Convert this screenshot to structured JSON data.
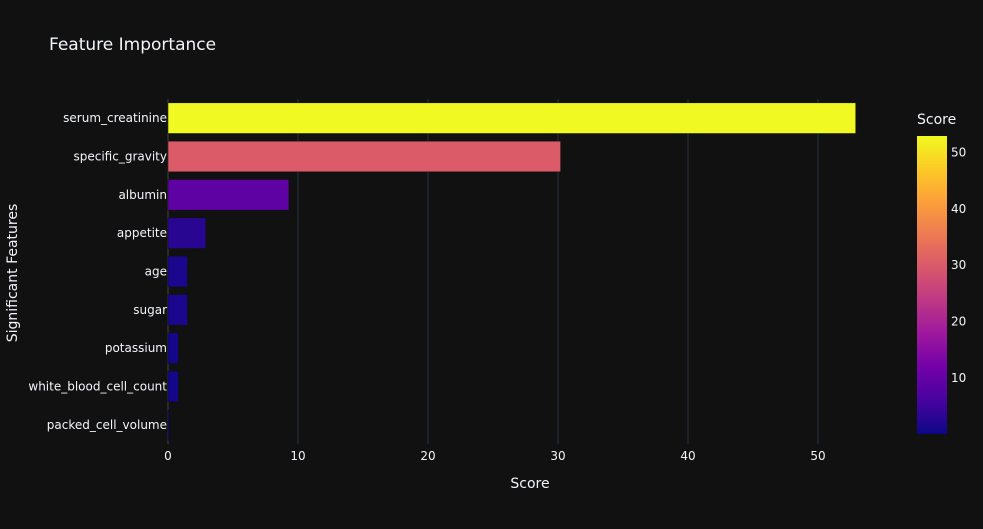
{
  "chart_data": {
    "type": "bar",
    "orientation": "horizontal",
    "title": "Feature Importance",
    "xlabel": "Score",
    "ylabel": "Significant Features",
    "xlim": [
      0,
      55
    ],
    "x_ticks": [
      0,
      10,
      20,
      30,
      40,
      50
    ],
    "categories": [
      "serum_creatinine",
      "specific_gravity",
      "albumin",
      "appetite",
      "age",
      "sugar",
      "potassium",
      "white_blood_cell_count",
      "packed_cell_volume"
    ],
    "values": [
      52.9,
      30.2,
      9.3,
      2.9,
      1.5,
      1.5,
      0.8,
      0.8,
      0.1
    ],
    "grid": true,
    "colorscale": "plasma",
    "colorbar": {
      "title": "Score",
      "range": [
        0.1,
        52.9
      ],
      "ticks": [
        10,
        20,
        30,
        40,
        50
      ]
    },
    "colors": {
      "background": "#111111",
      "grid": "#283442",
      "text": "#f2f5fa",
      "plasma_stops": [
        "#0d0887",
        "#46039f",
        "#7201a8",
        "#9c179e",
        "#bd3786",
        "#d8576b",
        "#ed7953",
        "#fb9f3a",
        "#fdca26",
        "#f0f921"
      ]
    }
  }
}
